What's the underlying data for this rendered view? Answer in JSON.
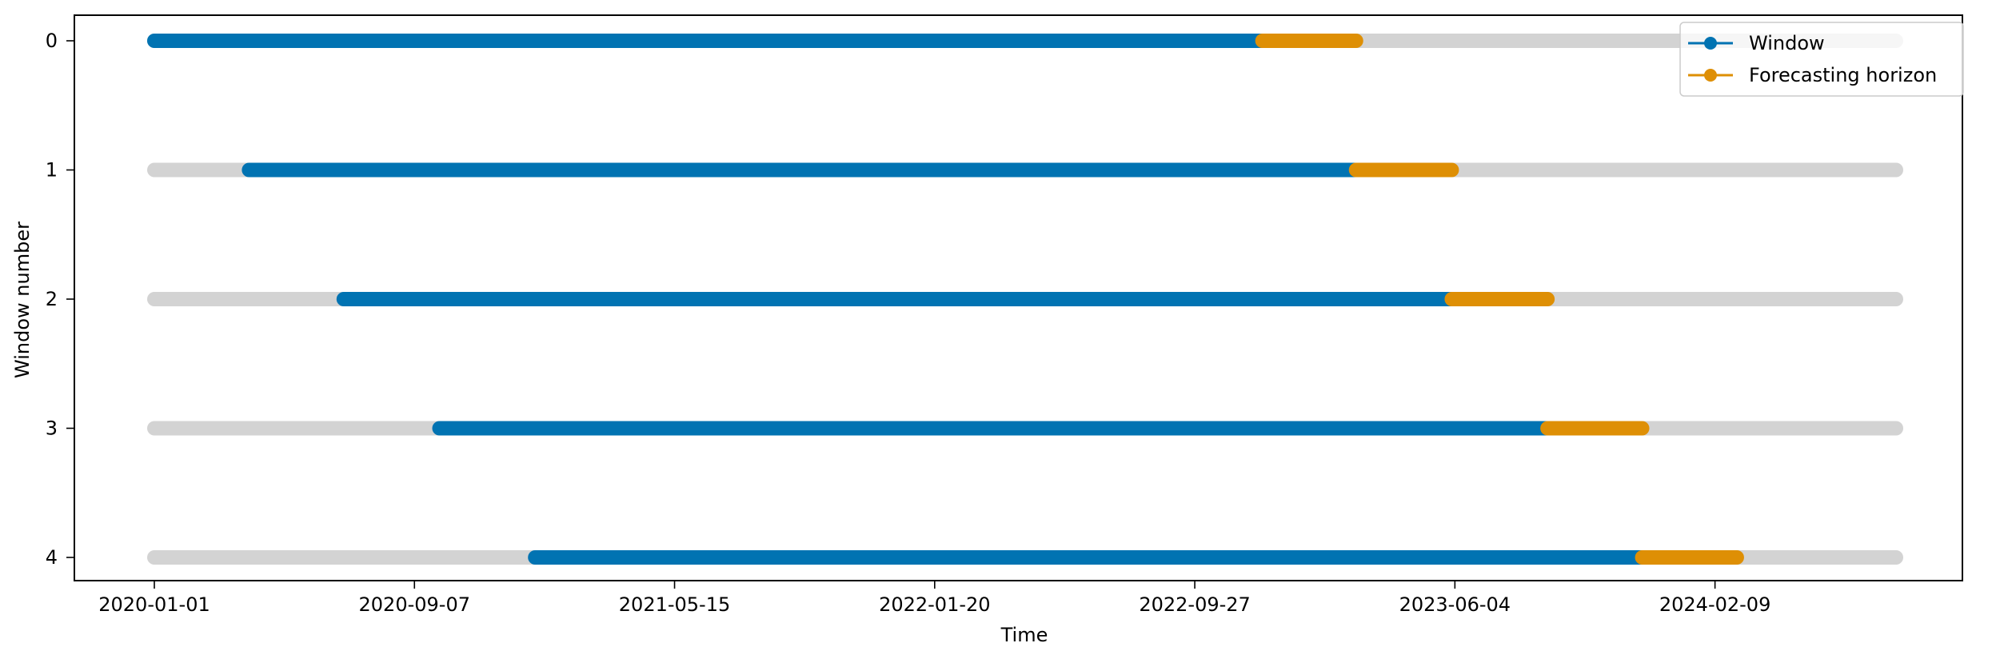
{
  "chart_data": {
    "type": "line",
    "title": "",
    "xlabel": "Time",
    "ylabel": "Window number",
    "x_ticks": [
      "2020-01-01",
      "2020-09-07",
      "2021-05-15",
      "2022-01-20",
      "2022-09-27",
      "2023-06-04",
      "2024-02-09"
    ],
    "y_ticks": [
      "0",
      "1",
      "2",
      "3",
      "4"
    ],
    "x_range": [
      "2020-01-01",
      "2024-08-01"
    ],
    "y_invert": true,
    "grid": false,
    "legend_position": "top-right",
    "legend": [
      {
        "name": "Window",
        "color": "#0173b2"
      },
      {
        "name": "Forecasting horizon",
        "color": "#de8f05"
      }
    ],
    "background_color": "#d3d3d3",
    "windows": [
      {
        "window": 0,
        "train_start": "2020-01-01",
        "train_end": "2022-12-01",
        "horizon_end": "2023-03-01"
      },
      {
        "window": 1,
        "train_start": "2020-04-01",
        "train_end": "2023-03-01",
        "horizon_end": "2023-06-01"
      },
      {
        "window": 2,
        "train_start": "2020-07-01",
        "train_end": "2023-06-01",
        "horizon_end": "2023-09-01"
      },
      {
        "window": 3,
        "train_start": "2020-10-01",
        "train_end": "2023-09-01",
        "horizon_end": "2023-12-01"
      },
      {
        "window": 4,
        "train_start": "2021-01-01",
        "train_end": "2023-12-01",
        "horizon_end": "2024-03-01"
      }
    ]
  }
}
